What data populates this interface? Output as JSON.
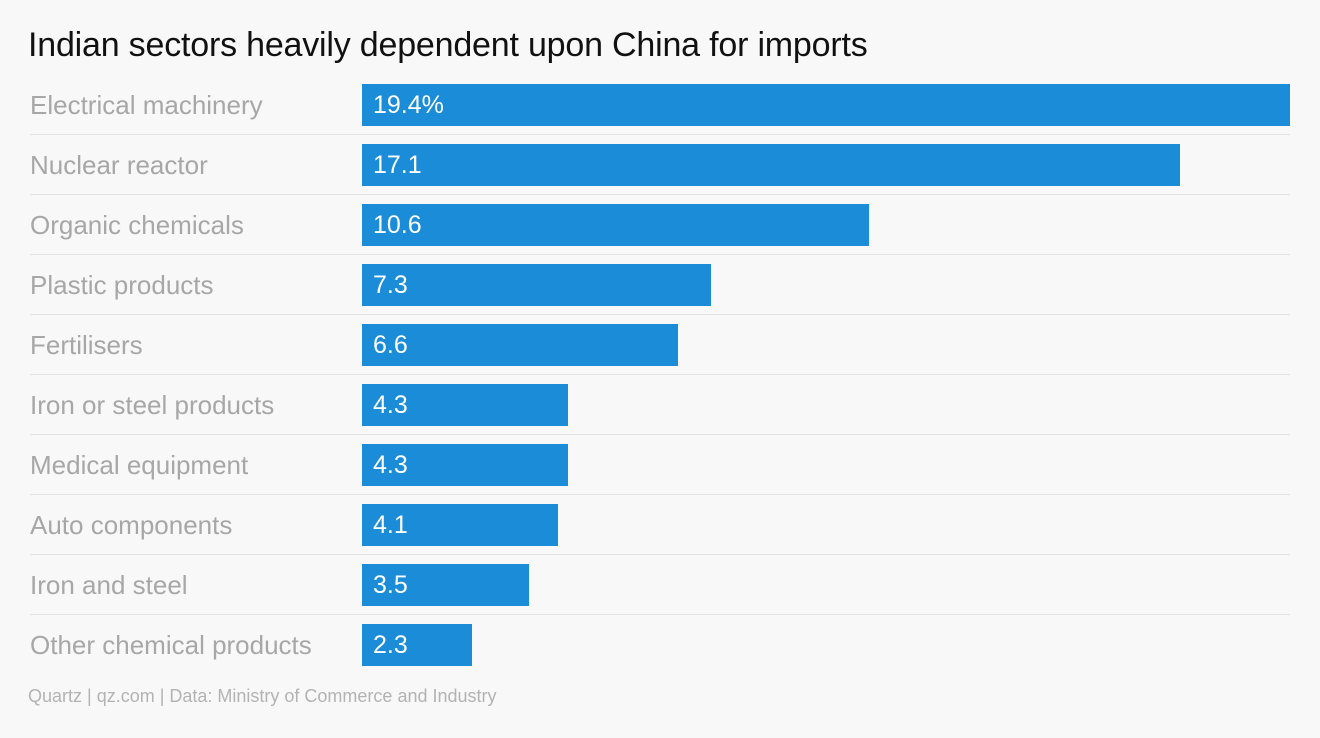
{
  "chart_data": {
    "type": "bar",
    "orientation": "horizontal",
    "title": "Indian sectors heavily dependent upon China for imports",
    "categories": [
      "Electrical machinery",
      "Nuclear reactor",
      "Organic chemicals",
      "Plastic products",
      "Fertilisers",
      "Iron or steel products",
      "Medical equipment",
      "Auto components",
      "Iron and steel",
      "Other chemical products"
    ],
    "values": [
      19.4,
      17.1,
      10.6,
      7.3,
      6.6,
      4.3,
      4.3,
      4.1,
      3.5,
      2.3
    ],
    "value_labels": [
      "19.4%",
      "17.1",
      "10.6",
      "7.3",
      "6.6",
      "4.3",
      "4.3",
      "4.1",
      "3.5",
      "2.3"
    ],
    "xlim": [
      0,
      19.4
    ],
    "grid": false,
    "bar_color": "#1a8cd8",
    "source": "Quartz | qz.com | Data: Ministry of Commerce and Industry"
  }
}
